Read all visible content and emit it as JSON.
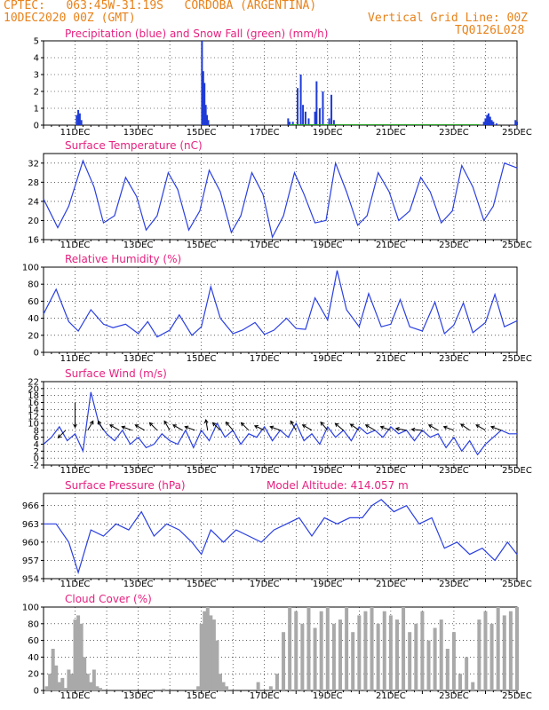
{
  "header": {
    "line1": "CPTEC:   063:45W-31:19S   CORDOBA (ARGENTINA)",
    "line2": "10DEC2020 00Z (GMT)",
    "grid_note": "Vertical Grid Line: 00Z",
    "code": "TQ0126L028"
  },
  "style": {
    "header_color": "#e8821a",
    "title_color": "#e6217f",
    "line_color": "#2a3fe0",
    "precip_color": "#1f3bd6",
    "snow_color": "#22a022",
    "cloud_color": "#a9a9a9"
  },
  "chart_data": [
    {
      "id": "precip",
      "type": "bar",
      "title": "Precipitation (blue) and Snow Fall (green) (mm/h)",
      "ylim": [
        0,
        5
      ],
      "yticks": [
        0,
        1,
        2,
        3,
        4,
        5
      ],
      "xticks": [
        "11DEC",
        "13DEC",
        "15DEC",
        "17DEC",
        "19DEC",
        "21DEC",
        "23DEC",
        "25DEC"
      ],
      "xlim_days": [
        0,
        15
      ],
      "series": [
        {
          "name": "Precipitation",
          "x": [
            1.05,
            1.1,
            1.15,
            1.2,
            5.02,
            5.06,
            5.1,
            5.14,
            5.18,
            5.22,
            7.75,
            7.8,
            7.9,
            8.05,
            8.15,
            8.22,
            8.3,
            8.4,
            8.6,
            8.65,
            8.75,
            8.85,
            9.05,
            9.12,
            9.2,
            13.95,
            14.0,
            14.05,
            14.1,
            14.15,
            14.2,
            14.25,
            14.35,
            14.95,
            15.0
          ],
          "values": [
            0.6,
            0.9,
            0.7,
            0.3,
            5.0,
            3.2,
            2.5,
            1.2,
            0.6,
            0.3,
            0.4,
            0.2,
            0.2,
            2.2,
            3.0,
            1.2,
            0.8,
            0.4,
            0.8,
            2.6,
            1.0,
            2.0,
            0.4,
            1.8,
            0.3,
            0.2,
            0.4,
            0.6,
            0.7,
            0.5,
            0.3,
            0.2,
            0.1,
            0.3,
            0.2
          ]
        },
        {
          "name": "Snow Fall",
          "x": [],
          "values": []
        }
      ]
    },
    {
      "id": "temp",
      "type": "line",
      "title": "Surface Temperature (nC)",
      "ylim": [
        16,
        34
      ],
      "yticks": [
        16,
        20,
        24,
        28,
        32
      ],
      "xticks": [
        "11DEC",
        "13DEC",
        "15DEC",
        "17DEC",
        "19DEC",
        "21DEC",
        "23DEC",
        "25DEC"
      ],
      "xlim_days": [
        0,
        15
      ],
      "series": [
        {
          "name": "Temperature",
          "x": [
            0,
            0.45,
            0.8,
            1.25,
            1.6,
            1.9,
            2.25,
            2.6,
            2.95,
            3.25,
            3.6,
            3.95,
            4.25,
            4.6,
            4.95,
            5.25,
            5.6,
            5.95,
            6.25,
            6.6,
            6.95,
            7.25,
            7.6,
            7.95,
            8.25,
            8.6,
            8.95,
            9.25,
            9.6,
            9.95,
            10.25,
            10.6,
            10.95,
            11.25,
            11.6,
            11.95,
            12.25,
            12.6,
            12.95,
            13.25,
            13.6,
            13.95,
            14.25,
            14.6,
            15
          ],
          "values": [
            24.5,
            18.5,
            23,
            32.5,
            27,
            19.5,
            21,
            29,
            25,
            18,
            21,
            30,
            26.5,
            18,
            22,
            30.5,
            26,
            17.5,
            21,
            30,
            25.5,
            16.5,
            21,
            30,
            25.5,
            19.5,
            20,
            32,
            26,
            19,
            21,
            30,
            26,
            20,
            22,
            29,
            26,
            19.5,
            22,
            31.5,
            27,
            20,
            23,
            32,
            31
          ]
        }
      ]
    },
    {
      "id": "rh",
      "type": "line",
      "title": "Relative Humidity (%)",
      "ylim": [
        0,
        100
      ],
      "yticks": [
        0,
        20,
        40,
        60,
        80,
        100
      ],
      "xticks": [
        "11DEC",
        "13DEC",
        "15DEC",
        "17DEC",
        "19DEC",
        "21DEC",
        "23DEC",
        "25DEC"
      ],
      "xlim_days": [
        0,
        15
      ],
      "series": [
        {
          "name": "Relative Humidity",
          "x": [
            0,
            0.4,
            0.8,
            1.1,
            1.5,
            1.9,
            2.2,
            2.6,
            3.0,
            3.3,
            3.6,
            4.0,
            4.3,
            4.7,
            5.0,
            5.3,
            5.6,
            6.0,
            6.3,
            6.7,
            7.0,
            7.3,
            7.7,
            8.0,
            8.3,
            8.6,
            9.0,
            9.3,
            9.6,
            10.0,
            10.3,
            10.7,
            11.0,
            11.3,
            11.6,
            12.0,
            12.4,
            12.7,
            13.0,
            13.3,
            13.6,
            14.0,
            14.3,
            14.6,
            15
          ],
          "values": [
            45,
            74,
            36,
            25,
            50,
            33,
            29,
            33,
            22,
            36,
            18,
            26,
            44,
            20,
            30,
            77,
            40,
            22,
            26,
            35,
            21,
            26,
            40,
            28,
            27,
            64,
            38,
            96,
            50,
            30,
            69,
            30,
            33,
            62,
            30,
            25,
            59,
            22,
            32,
            58,
            23,
            35,
            68,
            30,
            37
          ]
        }
      ]
    },
    {
      "id": "wind",
      "type": "line",
      "title": "Surface Wind (m/s)",
      "ylim": [
        -2,
        22
      ],
      "yticks": [
        -2,
        0,
        2,
        4,
        6,
        8,
        10,
        12,
        14,
        16,
        18,
        20,
        22
      ],
      "xticks": [
        "11DEC",
        "13DEC",
        "15DEC",
        "17DEC",
        "19DEC",
        "21DEC",
        "23DEC",
        "25DEC"
      ],
      "xlim_days": [
        0,
        15
      ],
      "series": [
        {
          "name": "Wind Speed",
          "x": [
            0,
            0.25,
            0.5,
            0.75,
            1.0,
            1.25,
            1.5,
            1.75,
            2.0,
            2.25,
            2.5,
            2.75,
            3.0,
            3.25,
            3.5,
            3.75,
            4.0,
            4.25,
            4.5,
            4.75,
            5.0,
            5.25,
            5.5,
            5.75,
            6.0,
            6.25,
            6.5,
            6.75,
            7.0,
            7.25,
            7.5,
            7.75,
            8.0,
            8.25,
            8.5,
            8.75,
            9.0,
            9.25,
            9.5,
            9.75,
            10.0,
            10.25,
            10.5,
            10.75,
            11.0,
            11.25,
            11.5,
            11.75,
            12.0,
            12.25,
            12.5,
            12.75,
            13.0,
            13.25,
            13.5,
            13.75,
            14.0,
            14.25,
            14.5,
            14.75,
            15
          ],
          "values": [
            4,
            6,
            9,
            5,
            7,
            2,
            19,
            10,
            7,
            5,
            8,
            4,
            6,
            3,
            4,
            7,
            5,
            4,
            8,
            3,
            8,
            5,
            10,
            6,
            8,
            4,
            7,
            6,
            9,
            5,
            8,
            6,
            10,
            5,
            7,
            4,
            9,
            6,
            8,
            5,
            9,
            7,
            8,
            6,
            9,
            7,
            8,
            5,
            8,
            6,
            7,
            3,
            6,
            2,
            5,
            1,
            4,
            6,
            8,
            7,
            7
          ]
        },
        {
          "name": "Wind Vectors",
          "x": [
            0.7,
            1.0,
            1.4,
            1.9,
            2.4,
            2.8,
            3.2,
            3.6,
            4.0,
            4.4,
            4.8,
            5.2,
            5.6,
            6.0,
            6.5,
            7.0,
            7.5,
            8.0,
            8.5,
            9.0,
            9.5,
            10.0,
            10.5,
            11.0,
            11.5,
            12.0,
            12.5,
            13.0,
            13.5,
            14.0,
            14.5
          ],
          "values": [
            225,
            270,
            60,
            120,
            150,
            160,
            150,
            135,
            120,
            150,
            160,
            100,
            135,
            130,
            135,
            155,
            160,
            120,
            150,
            130,
            140,
            145,
            150,
            160,
            170,
            175,
            150,
            160,
            145,
            150,
            160
          ]
        }
      ]
    },
    {
      "id": "pressure",
      "type": "line",
      "title": "Surface Pressure (hPa)",
      "subtitle": "Model Altitude: 414.057 m",
      "ylim": [
        954,
        968
      ],
      "yticks": [
        954,
        957,
        960,
        963,
        966
      ],
      "xticks": [
        "11DEC",
        "13DEC",
        "15DEC",
        "17DEC",
        "19DEC",
        "21DEC",
        "23DEC",
        "25DEC"
      ],
      "xlim_days": [
        0,
        15
      ],
      "series": [
        {
          "name": "Pressure",
          "x": [
            0,
            0.4,
            0.8,
            1.1,
            1.5,
            1.9,
            2.3,
            2.7,
            3.1,
            3.5,
            3.9,
            4.3,
            4.7,
            5.0,
            5.3,
            5.7,
            6.1,
            6.5,
            6.9,
            7.3,
            7.7,
            8.1,
            8.5,
            8.9,
            9.3,
            9.7,
            10.1,
            10.4,
            10.7,
            11.1,
            11.5,
            11.9,
            12.3,
            12.7,
            13.1,
            13.5,
            13.9,
            14.3,
            14.7,
            15
          ],
          "values": [
            963,
            963,
            960,
            955,
            962,
            961,
            963,
            962,
            965,
            961,
            963,
            962,
            960,
            958,
            962,
            960,
            962,
            961,
            960,
            962,
            963,
            964,
            961,
            964,
            963,
            964,
            964,
            966,
            967,
            965,
            966,
            963,
            964,
            959,
            960,
            958,
            959,
            957,
            960,
            958
          ]
        }
      ]
    },
    {
      "id": "cloud",
      "type": "bar",
      "title": "Cloud Cover (%)",
      "ylim": [
        0,
        100
      ],
      "yticks": [
        0,
        20,
        40,
        60,
        80,
        100
      ],
      "xticks": [
        "11DEC",
        "13DEC",
        "15DEC",
        "17DEC",
        "19DEC",
        "21DEC",
        "23DEC",
        "25DEC"
      ],
      "xlim_days": [
        0,
        15
      ],
      "series": [
        {
          "name": "Cloud Cover",
          "x": [
            0.1,
            0.2,
            0.3,
            0.4,
            0.5,
            0.6,
            0.7,
            0.8,
            0.9,
            1.0,
            1.1,
            1.2,
            1.3,
            1.4,
            1.5,
            1.6,
            1.7,
            1.8,
            2.0,
            2.5,
            3.0,
            3.5,
            3.8,
            4.2,
            4.5,
            4.9,
            5.0,
            5.1,
            5.2,
            5.3,
            5.4,
            5.5,
            5.6,
            5.7,
            5.8,
            6.0,
            6.4,
            6.8,
            7.2,
            7.4,
            7.6,
            7.8,
            8.0,
            8.2,
            8.4,
            8.6,
            8.8,
            9.0,
            9.2,
            9.4,
            9.6,
            9.8,
            10.0,
            10.2,
            10.4,
            10.6,
            10.8,
            11.0,
            11.2,
            11.4,
            11.6,
            11.8,
            12.0,
            12.2,
            12.4,
            12.6,
            12.8,
            13.0,
            13.2,
            13.4,
            13.6,
            13.8,
            14.0,
            14.2,
            14.4,
            14.6,
            14.8,
            15.0
          ],
          "values": [
            5,
            20,
            50,
            30,
            10,
            15,
            3,
            25,
            20,
            85,
            90,
            80,
            40,
            20,
            10,
            25,
            5,
            3,
            0,
            0,
            0,
            0,
            2,
            0,
            0,
            5,
            80,
            95,
            100,
            90,
            85,
            60,
            20,
            10,
            5,
            0,
            0,
            10,
            5,
            20,
            70,
            100,
            95,
            80,
            100,
            75,
            95,
            100,
            80,
            85,
            100,
            70,
            90,
            95,
            100,
            80,
            95,
            90,
            85,
            100,
            70,
            80,
            95,
            60,
            75,
            85,
            50,
            70,
            20,
            40,
            10,
            85,
            95,
            80,
            100,
            90,
            95,
            100
          ]
        }
      ]
    }
  ]
}
